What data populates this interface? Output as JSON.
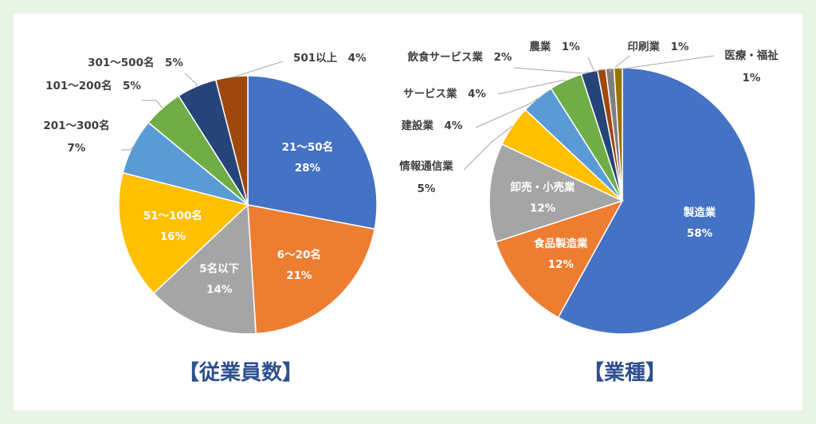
{
  "chart_data": [
    {
      "type": "pie",
      "title": "【従業員数】",
      "slices": [
        {
          "label": "21～50名",
          "value": 28,
          "pct": "28%",
          "color": "#4472c4",
          "inside": true
        },
        {
          "label": "6～20名",
          "value": 21,
          "pct": "21%",
          "color": "#ed7d31",
          "inside": true
        },
        {
          "label": "5名以下",
          "value": 14,
          "pct": "14%",
          "color": "#a5a5a5",
          "inside": true
        },
        {
          "label": "51～100名",
          "value": 16,
          "pct": "16%",
          "color": "#ffc000",
          "inside": true
        },
        {
          "label": "201～300名",
          "value": 7,
          "pct": "7%",
          "color": "#5b9bd5",
          "inside": false
        },
        {
          "label": "101～200名",
          "value": 5,
          "pct": "5%",
          "color": "#70ad47",
          "inside": false
        },
        {
          "label": "301～500名",
          "value": 5,
          "pct": "5%",
          "color": "#264478",
          "inside": false
        },
        {
          "label": "501以上",
          "value": 4,
          "pct": "4%",
          "color": "#9e480e",
          "inside": false
        }
      ]
    },
    {
      "type": "pie",
      "title": "【業種】",
      "slices": [
        {
          "label": "製造業",
          "value": 58,
          "pct": "58%",
          "color": "#4472c4",
          "inside": true
        },
        {
          "label": "食品製造業",
          "value": 12,
          "pct": "12%",
          "color": "#ed7d31",
          "inside": true
        },
        {
          "label": "卸売・小売業",
          "value": 12,
          "pct": "12%",
          "color": "#a5a5a5",
          "inside": true
        },
        {
          "label": "情報通信業",
          "value": 5,
          "pct": "5%",
          "color": "#ffc000",
          "inside": false
        },
        {
          "label": "建設業",
          "value": 4,
          "pct": "4%",
          "color": "#5b9bd5",
          "inside": false
        },
        {
          "label": "サービス業",
          "value": 4,
          "pct": "4%",
          "color": "#70ad47",
          "inside": false
        },
        {
          "label": "飲食サービス業",
          "value": 2,
          "pct": "2%",
          "color": "#264478",
          "inside": false
        },
        {
          "label": "農業",
          "value": 1,
          "pct": "1%",
          "color": "#9e480e",
          "inside": false
        },
        {
          "label": "印刷業",
          "value": 1,
          "pct": "1%",
          "color": "#7f7f7f",
          "inside": false
        },
        {
          "label": "医療・福祉",
          "value": 1,
          "pct": "1%",
          "color": "#997300",
          "inside": false
        }
      ]
    }
  ]
}
